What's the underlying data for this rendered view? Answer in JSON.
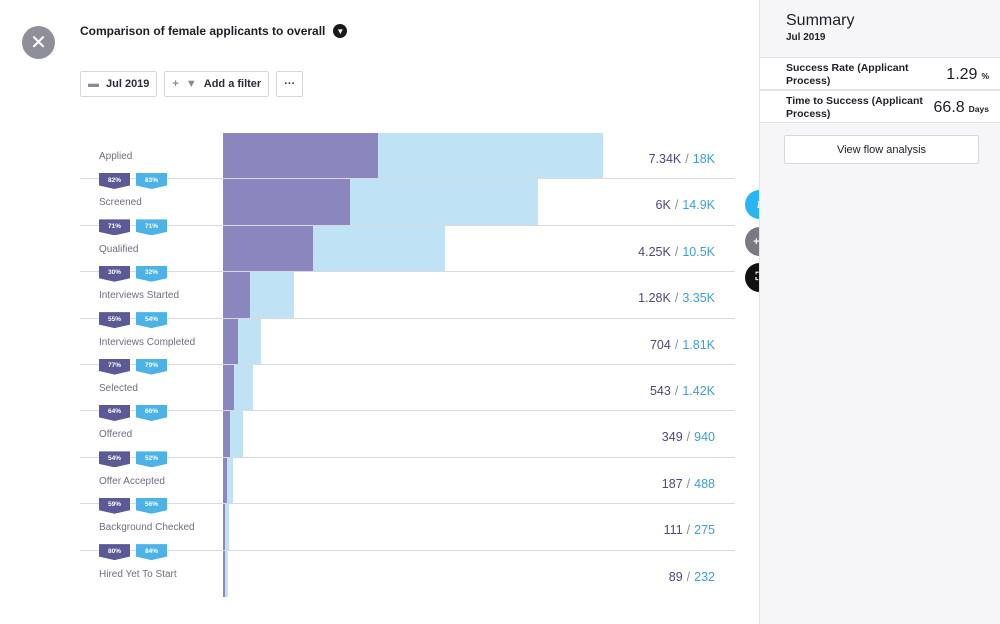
{
  "header": {
    "title": "Comparison of female applicants to overall",
    "date_filter": "Jul 2019",
    "add_filter": "Add a filter",
    "more": "···"
  },
  "funnel": {
    "colors": {
      "female": "#8b87be",
      "overall": "#bfe3f5"
    },
    "max": 18000,
    "stages": [
      {
        "label": "Applied",
        "female_display": "7.34K",
        "overall_display": "18K",
        "female": 7340,
        "overall": 18000,
        "tag_female": "82%",
        "tag_overall": "83%"
      },
      {
        "label": "Screened",
        "female_display": "6K",
        "overall_display": "14.9K",
        "female": 6000,
        "overall": 14900,
        "tag_female": "71%",
        "tag_overall": "71%"
      },
      {
        "label": "Qualified",
        "female_display": "4.25K",
        "overall_display": "10.5K",
        "female": 4250,
        "overall": 10500,
        "tag_female": "30%",
        "tag_overall": "32%"
      },
      {
        "label": "Interviews Started",
        "female_display": "1.28K",
        "overall_display": "3.35K",
        "female": 1280,
        "overall": 3350,
        "tag_female": "55%",
        "tag_overall": "54%"
      },
      {
        "label": "Interviews Completed",
        "female_display": "704",
        "overall_display": "1.81K",
        "female": 704,
        "overall": 1810,
        "tag_female": "77%",
        "tag_overall": "79%"
      },
      {
        "label": "Selected",
        "female_display": "543",
        "overall_display": "1.42K",
        "female": 543,
        "overall": 1420,
        "tag_female": "64%",
        "tag_overall": "66%"
      },
      {
        "label": "Offered",
        "female_display": "349",
        "overall_display": "940",
        "female": 349,
        "overall": 940,
        "tag_female": "54%",
        "tag_overall": "52%"
      },
      {
        "label": "Offer Accepted",
        "female_display": "187",
        "overall_display": "488",
        "female": 187,
        "overall": 488,
        "tag_female": "59%",
        "tag_overall": "56%"
      },
      {
        "label": "Background Checked",
        "female_display": "111",
        "overall_display": "275",
        "female": 111,
        "overall": 275,
        "tag_female": "80%",
        "tag_overall": "84%"
      },
      {
        "label": "Hired Yet To Start",
        "female_display": "89",
        "overall_display": "232",
        "female": 89,
        "overall": 232,
        "tag_female": null,
        "tag_overall": null
      }
    ]
  },
  "summary": {
    "title": "Summary",
    "period": "Jul 2019",
    "success_rate": {
      "label": "Success Rate (Applicant Process)",
      "value": "1.29",
      "unit": "%"
    },
    "time_to_success": {
      "label": "Time to Success (Applicant Process)",
      "value": "66.8",
      "unit": "Days"
    },
    "flow_button": "View flow analysis"
  },
  "icons": {
    "close": "close-icon",
    "info": "info-icon",
    "add_metric": "add-metric-icon",
    "focus": "focus-icon"
  }
}
